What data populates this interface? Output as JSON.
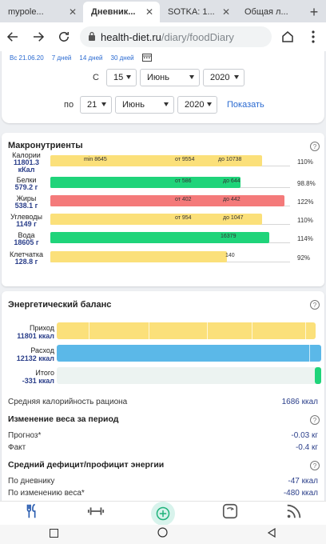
{
  "tabs": [
    {
      "label": "mypole...",
      "active": false
    },
    {
      "label": "Дневник...",
      "active": true
    },
    {
      "label": "SOTKA: 1...",
      "active": false
    },
    {
      "label": "Общая л...",
      "active": false
    }
  ],
  "url": {
    "host": "health-diet.ru",
    "path": "/diary/foodDiary"
  },
  "range_links": [
    "Вс 21.06.20",
    "7 дней",
    "14 дней",
    "30 дней"
  ],
  "date_from": {
    "label": "С",
    "day": "15",
    "month": "Июнь",
    "year": "2020"
  },
  "date_to": {
    "label": "по",
    "day": "21",
    "month": "Июнь",
    "year": "2020"
  },
  "show_button": "Показать",
  "macros": {
    "title": "Макронутриенты",
    "help": "?",
    "rows": [
      {
        "name": "Калории",
        "value": "11801.3",
        "unit": "кКал",
        "fraction": 1.1,
        "color": "#fbe07a",
        "percent": "110%",
        "ticks": [
          "min 8645",
          "от 9554",
          "до 10738"
        ]
      },
      {
        "name": "Белки",
        "value": "579.2 г",
        "unit": "",
        "fraction": 0.988,
        "color": "#1fd47a",
        "percent": "98.8%",
        "ticks": [
          "от 586",
          "до 644"
        ]
      },
      {
        "name": "Жиры",
        "value": "538.1 г",
        "unit": "",
        "fraction": 1.22,
        "color": "#f47a7a",
        "percent": "122%",
        "ticks": [
          "от 402",
          "до 442"
        ]
      },
      {
        "name": "Углеводы",
        "value": "1149 г",
        "unit": "",
        "fraction": 1.1,
        "color": "#fbe07a",
        "percent": "110%",
        "ticks": [
          "от 954",
          "до 1047"
        ]
      },
      {
        "name": "Вода",
        "value": "18605 г",
        "unit": "",
        "fraction": 1.14,
        "color": "#1fd47a",
        "percent": "114%",
        "ticks": [
          "16379"
        ]
      },
      {
        "name": "Клетчатка",
        "value": "128.8 г",
        "unit": "",
        "fraction": 0.92,
        "color": "#fbe07a",
        "percent": "92%",
        "ticks": [
          "140"
        ]
      }
    ]
  },
  "energy": {
    "title": "Энергетический баланс",
    "help": "?",
    "income": {
      "label": "Приход",
      "value": "11801 ккал",
      "color": "#fbe07a"
    },
    "expense": {
      "label": "Расход",
      "value": "12132 ккал",
      "color": "#5bb8e8"
    },
    "total": {
      "label": "Итого",
      "value": "-331 ккал",
      "color": "#1fd47a"
    }
  },
  "avg_calorie": {
    "label": "Средняя калорийность рациона",
    "value": "1686 ккал"
  },
  "weight_change": {
    "title": "Изменение веса за период",
    "forecast": {
      "label": "Прогноз*",
      "value": "-0.03 кг"
    },
    "fact": {
      "label": "Факт",
      "value": "-0.4 кг"
    }
  },
  "deficit": {
    "title": "Средний дефицит/профицит энергии",
    "by_diary": {
      "label": "По дневнику",
      "value": "-47 ккал"
    },
    "by_weight": {
      "label": "По изменению веса*",
      "value": "-480 ккал"
    }
  },
  "bottom_nav": [
    "fork-knife-icon",
    "dumbbell-icon",
    "add-circle-icon",
    "scale-icon",
    "feed-icon"
  ]
}
